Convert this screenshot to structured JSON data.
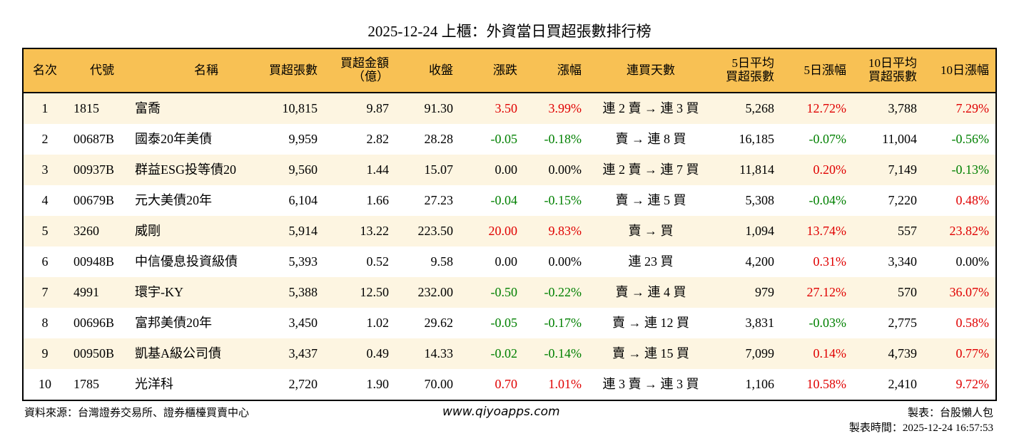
{
  "title": "2025-12-24 上櫃：外資當日買超張數排行榜",
  "columns": [
    [
      "名次"
    ],
    [
      "代號"
    ],
    [
      "名稱"
    ],
    [
      "買超張數"
    ],
    [
      "買超金額",
      "（億）"
    ],
    [
      "收盤"
    ],
    [
      "漲跌"
    ],
    [
      "漲幅"
    ],
    [
      "連買天數"
    ],
    [
      "5日平均",
      "買超張數"
    ],
    [
      "5日漲幅"
    ],
    [
      "10日平均",
      "買超張數"
    ],
    [
      "10日漲幅"
    ]
  ],
  "rows": [
    [
      "1",
      "1815",
      "富喬",
      "10,815",
      "9.87",
      "91.30",
      "3.50",
      "3.99%",
      "連 2 賣 → 連 3 買",
      "5,268",
      "12.72%",
      "3,788",
      "7.29%"
    ],
    [
      "2",
      "00687B",
      "國泰20年美債",
      "9,959",
      "2.82",
      "28.28",
      "-0.05",
      "-0.18%",
      "賣 → 連 8 買",
      "16,185",
      "-0.07%",
      "11,004",
      "-0.56%"
    ],
    [
      "3",
      "00937B",
      "群益ESG投等債20",
      "9,560",
      "1.44",
      "15.07",
      "0.00",
      "0.00%",
      "連 2 賣 → 連 7 買",
      "11,814",
      "0.20%",
      "7,149",
      "-0.13%"
    ],
    [
      "4",
      "00679B",
      "元大美債20年",
      "6,104",
      "1.66",
      "27.23",
      "-0.04",
      "-0.15%",
      "賣 → 連 5 買",
      "5,308",
      "-0.04%",
      "7,220",
      "0.48%"
    ],
    [
      "5",
      "3260",
      "威剛",
      "5,914",
      "13.22",
      "223.50",
      "20.00",
      "9.83%",
      "賣 → 買",
      "1,094",
      "13.74%",
      "557",
      "23.82%"
    ],
    [
      "6",
      "00948B",
      "中信優息投資級債",
      "5,393",
      "0.52",
      "9.58",
      "0.00",
      "0.00%",
      "連 23 買",
      "4,200",
      "0.31%",
      "3,340",
      "0.00%"
    ],
    [
      "7",
      "4991",
      "環宇-KY",
      "5,388",
      "12.50",
      "232.00",
      "-0.50",
      "-0.22%",
      "賣 → 連 4 買",
      "979",
      "27.12%",
      "570",
      "36.07%"
    ],
    [
      "8",
      "00696B",
      "富邦美債20年",
      "3,450",
      "1.02",
      "29.62",
      "-0.05",
      "-0.17%",
      "賣 → 連 12 買",
      "3,831",
      "-0.03%",
      "2,775",
      "0.58%"
    ],
    [
      "9",
      "00950B",
      "凱基A級公司債",
      "3,437",
      "0.49",
      "14.33",
      "-0.02",
      "-0.14%",
      "賣 → 連 15 買",
      "7,099",
      "0.14%",
      "4,739",
      "0.77%"
    ],
    [
      "10",
      "1785",
      "光洋科",
      "2,720",
      "1.90",
      "70.00",
      "0.70",
      "1.01%",
      "連 3 賣 → 連 3 買",
      "1,106",
      "10.58%",
      "2,410",
      "9.72%"
    ]
  ],
  "footer": {
    "source": "資料來源：台灣證券交易所、證券櫃檯買賣中心",
    "website": "www.qiyoapps.com",
    "maker": "製表：台股懶人包",
    "made_time": "製表時間：2025-12-24 16:57:53"
  },
  "colors": {
    "header_bg": "#f8c154",
    "odd_row_bg": "#fdf5e1",
    "up": "#e00000",
    "down": "#008000"
  }
}
